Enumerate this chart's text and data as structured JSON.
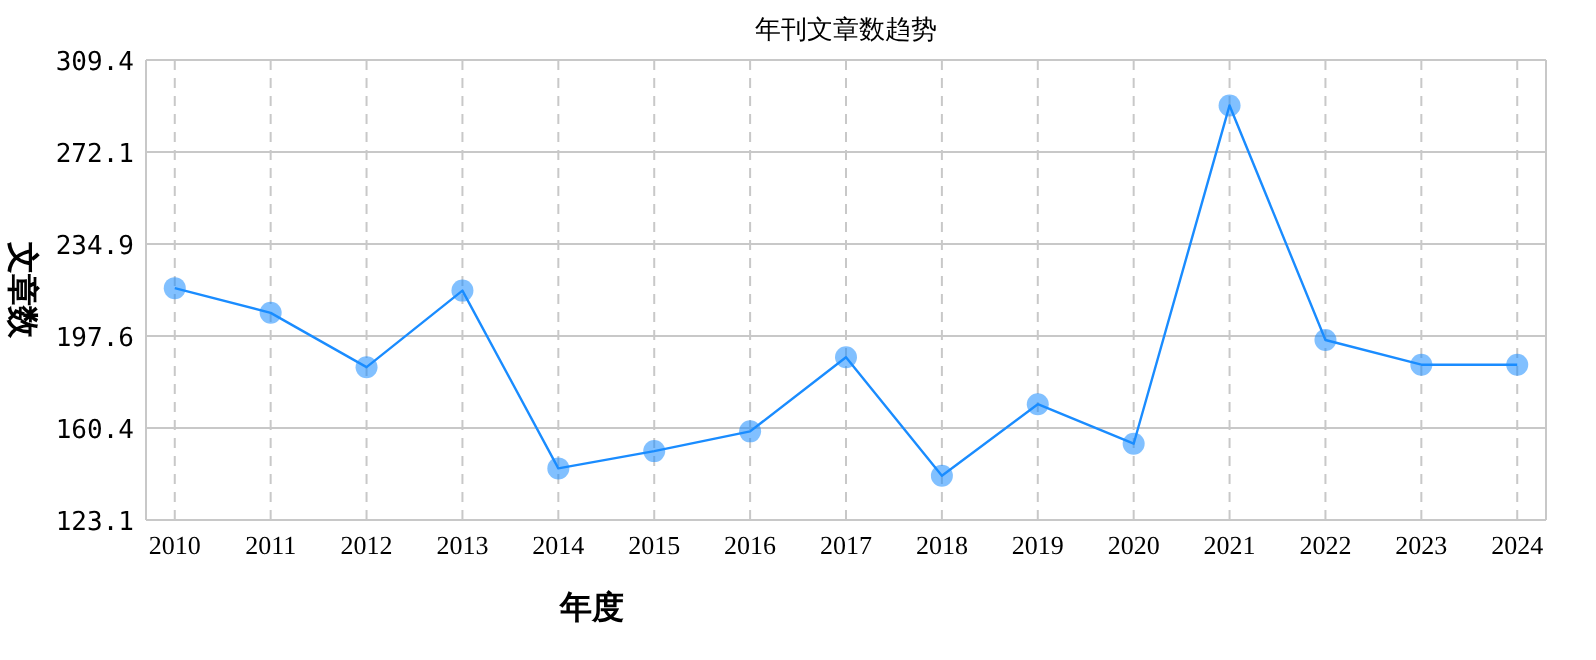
{
  "chart_data": {
    "type": "line",
    "title": "年刊文章数趋势",
    "xlabel": "年度",
    "ylabel": "文章数",
    "categories": [
      "2010",
      "2011",
      "2012",
      "2013",
      "2014",
      "2015",
      "2016",
      "2017",
      "2018",
      "2019",
      "2020",
      "2021",
      "2022",
      "2023",
      "2024"
    ],
    "series": [
      {
        "color": "#1a8cff",
        "values": [
          217,
          207,
          185,
          216,
          144,
          151,
          159,
          189,
          141,
          170,
          154,
          291,
          196,
          186,
          186
        ]
      }
    ],
    "ylim": [
      123.1,
      309.4
    ],
    "yticks": [
      123.1,
      160.4,
      197.6,
      234.9,
      272.1,
      309.4
    ],
    "grid": true,
    "marker": "circle",
    "line_style": "solid"
  }
}
